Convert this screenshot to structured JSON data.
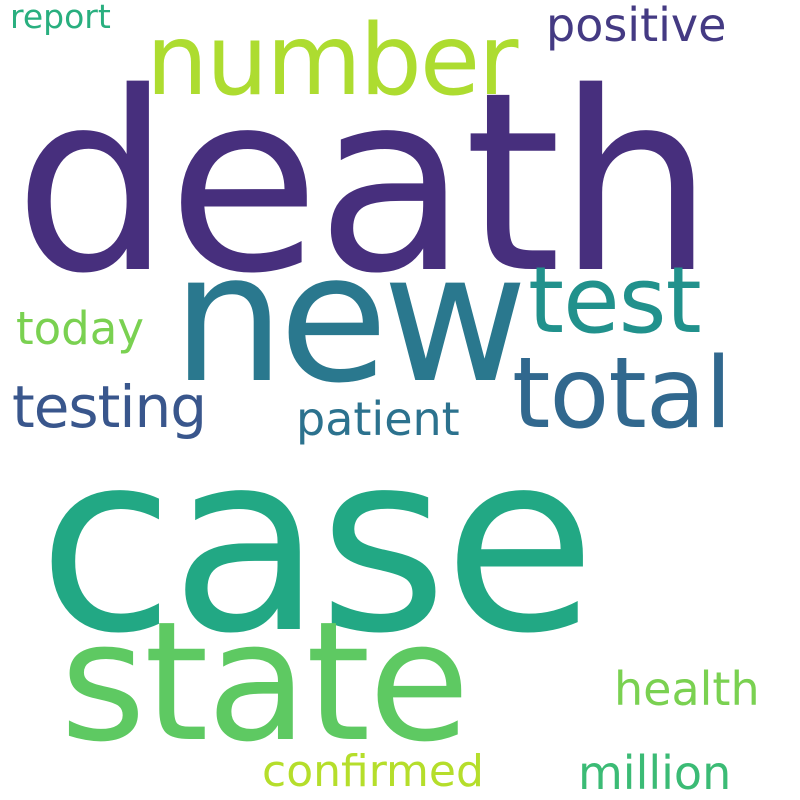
{
  "words": {
    "death": {
      "text": "death",
      "color": "#472f7d"
    },
    "case": {
      "text": "case",
      "color": "#22a884"
    },
    "state": {
      "text": "state",
      "color": "#5ec962"
    },
    "new": {
      "text": "new",
      "color": "#2a788e"
    },
    "number": {
      "text": "number",
      "color": "#addc30"
    },
    "test": {
      "text": "test",
      "color": "#21918c"
    },
    "total": {
      "text": "total",
      "color": "#31688e"
    },
    "testing": {
      "text": "testing",
      "color": "#39568c"
    },
    "patient": {
      "text": "patient",
      "color": "#2c728e"
    },
    "positive": {
      "text": "positive",
      "color": "#443a83"
    },
    "today": {
      "text": "today",
      "color": "#7ad151"
    },
    "report": {
      "text": "report",
      "color": "#29af7f"
    },
    "health": {
      "text": "health",
      "color": "#7ad151"
    },
    "million": {
      "text": "million",
      "color": "#3bbb75"
    },
    "confirmed": {
      "text": "confirmed",
      "color": "#b5de2b"
    }
  }
}
